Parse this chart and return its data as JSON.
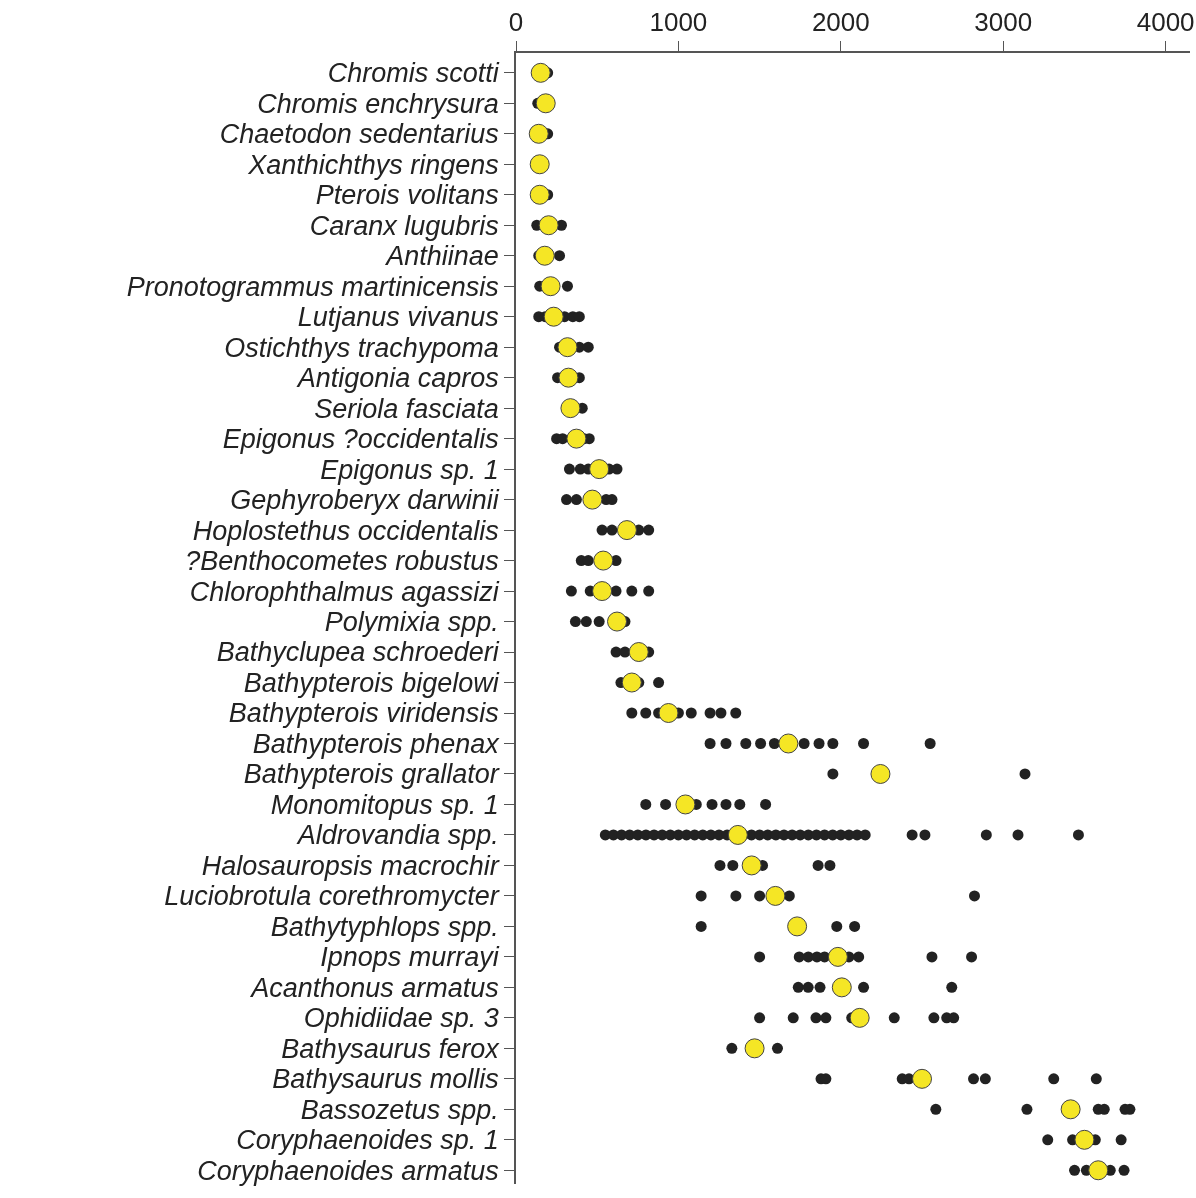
{
  "chart_data": {
    "type": "scatter",
    "orientation": "horizontal",
    "marker": "circle",
    "grid": false,
    "categories": [
      "Chromis scotti",
      "Chromis enchrysura",
      "Chaetodon sedentarius",
      "Xanthichthys ringens",
      "Pterois volitans",
      "Caranx lugubris",
      "Anthiinae",
      "Pronotogrammus martinicensis",
      "Lutjanus vivanus",
      "Ostichthys trachypoma",
      "Antigonia capros",
      "Seriola fasciata",
      "Epigonus ?occidentalis",
      "Epigonus sp. 1",
      "Gephyroberyx darwinii",
      "Hoplostethus occidentalis",
      "?Benthocometes robustus",
      "Chlorophthalmus agassizi",
      "Polymixia spp.",
      "Bathyclupea schroederi",
      "Bathypterois bigelowi",
      "Bathypterois viridensis",
      "Bathypterois phenax",
      "Bathypterois grallator",
      "Monomitopus sp. 1",
      "Aldrovandia spp.",
      "Halosauropsis macrochir",
      "Luciobrotula corethromycter",
      "Bathytyphlops spp.",
      "Ipnops murrayi",
      "Acanthonus armatus",
      "Ophidiidae sp. 3",
      "Bathysaurus ferox",
      "Bathysaurus mollis",
      "Bassozetus spp.",
      "Coryphaenoides sp. 1",
      "Coryphaenoides armatus"
    ],
    "xlim": [
      0,
      4150
    ],
    "xticks": [
      0,
      1000,
      2000,
      3000,
      4000
    ],
    "series": [
      {
        "color": "#222222",
        "x": [
          "Chromis scotti",
          "Chromis enchrysura",
          "Chaetodon sedentarius",
          "Pterois volitans",
          "Caranx lugubris",
          "Caranx lugubris",
          "Anthiinae",
          "Anthiinae",
          "Pronotogrammus martinicensis",
          "Pronotogrammus martinicensis",
          "Lutjanus vivanus",
          "Lutjanus vivanus",
          "Lutjanus vivanus",
          "Lutjanus vivanus",
          "Lutjanus vivanus",
          "Ostichthys trachypoma",
          "Ostichthys trachypoma",
          "Ostichthys trachypoma",
          "Antigonia capros",
          "Antigonia capros",
          "Seriola fasciata",
          "Epigonus ?occidentalis",
          "Epigonus ?occidentalis",
          "Epigonus ?occidentalis",
          "Epigonus ?occidentalis",
          "Epigonus sp. 1",
          "Epigonus sp. 1",
          "Epigonus sp. 1",
          "Epigonus sp. 1",
          "Epigonus sp. 1",
          "Gephyroberyx darwinii",
          "Gephyroberyx darwinii",
          "Gephyroberyx darwinii",
          "Gephyroberyx darwinii",
          "Hoplostethus occidentalis",
          "Hoplostethus occidentalis",
          "Hoplostethus occidentalis",
          "Hoplostethus occidentalis",
          "?Benthocometes robustus",
          "?Benthocometes robustus",
          "?Benthocometes robustus",
          "Chlorophthalmus agassizi",
          "Chlorophthalmus agassizi",
          "Chlorophthalmus agassizi",
          "Chlorophthalmus agassizi",
          "Chlorophthalmus agassizi",
          "Polymixia spp.",
          "Polymixia spp.",
          "Polymixia spp.",
          "Polymixia spp.",
          "Bathyclupea schroederi",
          "Bathyclupea schroederi",
          "Bathyclupea schroederi",
          "Bathypterois bigelowi",
          "Bathypterois bigelowi",
          "Bathypterois bigelowi",
          "Bathypterois viridensis",
          "Bathypterois viridensis",
          "Bathypterois viridensis",
          "Bathypterois viridensis",
          "Bathypterois viridensis",
          "Bathypterois viridensis",
          "Bathypterois viridensis",
          "Bathypterois viridensis",
          "Bathypterois phenax",
          "Bathypterois phenax",
          "Bathypterois phenax",
          "Bathypterois phenax",
          "Bathypterois phenax",
          "Bathypterois phenax",
          "Bathypterois phenax",
          "Bathypterois phenax",
          "Bathypterois phenax",
          "Bathypterois phenax",
          "Bathypterois grallator",
          "Bathypterois grallator",
          "Monomitopus sp. 1",
          "Monomitopus sp. 1",
          "Monomitopus sp. 1",
          "Monomitopus sp. 1",
          "Monomitopus sp. 1",
          "Monomitopus sp. 1",
          "Monomitopus sp. 1",
          "Aldrovandia spp.",
          "Aldrovandia spp.",
          "Aldrovandia spp.",
          "Aldrovandia spp.",
          "Aldrovandia spp.",
          "Aldrovandia spp.",
          "Aldrovandia spp.",
          "Aldrovandia spp.",
          "Aldrovandia spp.",
          "Aldrovandia spp.",
          "Aldrovandia spp.",
          "Aldrovandia spp.",
          "Aldrovandia spp.",
          "Aldrovandia spp.",
          "Aldrovandia spp.",
          "Aldrovandia spp.",
          "Aldrovandia spp.",
          "Aldrovandia spp.",
          "Aldrovandia spp.",
          "Aldrovandia spp.",
          "Aldrovandia spp.",
          "Aldrovandia spp.",
          "Aldrovandia spp.",
          "Aldrovandia spp.",
          "Aldrovandia spp.",
          "Aldrovandia spp.",
          "Aldrovandia spp.",
          "Aldrovandia spp.",
          "Aldrovandia spp.",
          "Aldrovandia spp.",
          "Aldrovandia spp.",
          "Aldrovandia spp.",
          "Aldrovandia spp.",
          "Aldrovandia spp.",
          "Aldrovandia spp.",
          "Aldrovandia spp.",
          "Aldrovandia spp.",
          "Halosauropsis macrochir",
          "Halosauropsis macrochir",
          "Halosauropsis macrochir",
          "Halosauropsis macrochir",
          "Halosauropsis macrochir",
          "Luciobrotula corethromycter",
          "Luciobrotula corethromycter",
          "Luciobrotula corethromycter",
          "Luciobrotula corethromycter",
          "Luciobrotula corethromycter",
          "Bathytyphlops spp.",
          "Bathytyphlops spp.",
          "Bathytyphlops spp.",
          "Ipnops murrayi",
          "Ipnops murrayi",
          "Ipnops murrayi",
          "Ipnops murrayi",
          "Ipnops murrayi",
          "Ipnops murrayi",
          "Ipnops murrayi",
          "Ipnops murrayi",
          "Ipnops murrayi",
          "Acanthonus armatus",
          "Acanthonus armatus",
          "Acanthonus armatus",
          "Acanthonus armatus",
          "Acanthonus armatus",
          "Ophidiidae sp. 3",
          "Ophidiidae sp. 3",
          "Ophidiidae sp. 3",
          "Ophidiidae sp. 3",
          "Ophidiidae sp. 3",
          "Ophidiidae sp. 3",
          "Ophidiidae sp. 3",
          "Ophidiidae sp. 3",
          "Ophidiidae sp. 3",
          "Bathysaurus ferox",
          "Bathysaurus ferox",
          "Bathysaurus mollis",
          "Bathysaurus mollis",
          "Bathysaurus mollis",
          "Bathysaurus mollis",
          "Bathysaurus mollis",
          "Bathysaurus mollis",
          "Bathysaurus mollis",
          "Bathysaurus mollis",
          "Bassozetus spp.",
          "Bassozetus spp.",
          "Bassozetus spp.",
          "Bassozetus spp.",
          "Bassozetus spp.",
          "Bassozetus spp.",
          "Coryphaenoides sp. 1",
          "Coryphaenoides sp. 1",
          "Coryphaenoides sp. 1",
          "Coryphaenoides sp. 1",
          "Coryphaenoides armatus",
          "Coryphaenoides armatus",
          "Coryphaenoides armatus",
          "Coryphaenoides armatus"
        ],
        "values": [
          195,
          134,
          195,
          195,
          128,
          280,
          140,
          268,
          146,
          317,
          140,
          180,
          299,
          350,
          390,
          268,
          390,
          445,
          256,
          390,
          408,
          250,
          287,
          420,
          451,
          329,
          396,
          445,
          573,
          622,
          311,
          372,
          555,
          591,
          530,
          591,
          756,
          817,
          402,
          445,
          616,
          341,
          457,
          616,
          713,
          817,
          366,
          433,
          512,
          671,
          616,
          671,
          817,
          646,
          756,
          878,
          713,
          799,
          878,
          1000,
          1079,
          1195,
          1262,
          1353,
          1195,
          1293,
          1415,
          1506,
          1591,
          1774,
          1866,
          1951,
          2140,
          2550,
          1951,
          3134,
          799,
          921,
          1110,
          1207,
          1293,
          1378,
          1537,
          550,
          600,
          650,
          700,
          750,
          800,
          850,
          900,
          950,
          1000,
          1050,
          1100,
          1150,
          1200,
          1250,
          1300,
          1400,
          1450,
          1500,
          1550,
          1600,
          1650,
          1700,
          1750,
          1800,
          1850,
          1900,
          1950,
          2000,
          2050,
          2100,
          2150,
          2439,
          2518,
          2896,
          3091,
          3463,
          1256,
          1335,
          1518,
          1860,
          1933,
          1140,
          1354,
          1500,
          1683,
          2823,
          1140,
          1975,
          2085,
          1500,
          1744,
          1800,
          1853,
          1900,
          2050,
          2110,
          2561,
          2805,
          1738,
          1799,
          1872,
          2140,
          2683,
          1500,
          1707,
          1847,
          1908,
          2067,
          2329,
          2573,
          2652,
          2695,
          1329,
          1610,
          1878,
          1908,
          2378,
          2420,
          2817,
          2890,
          3311,
          3573,
          2585,
          3146,
          3585,
          3622,
          3750,
          3780,
          3274,
          3427,
          3567,
          3726,
          3439,
          3512,
          3659,
          3744
        ]
      },
      {
        "color": "#f5e625",
        "values": [
          152,
          183,
          140,
          146,
          146,
          201,
          177,
          213,
          232,
          317,
          323,
          335,
          372,
          512,
          470,
          683,
          537,
          530,
          622,
          756,
          713,
          939,
          1677,
          2244,
          1043,
          1366,
          1451,
          1597,
          1731,
          1982,
          2006,
          2116,
          1469,
          2500,
          3415,
          3500,
          3585
        ]
      }
    ]
  }
}
